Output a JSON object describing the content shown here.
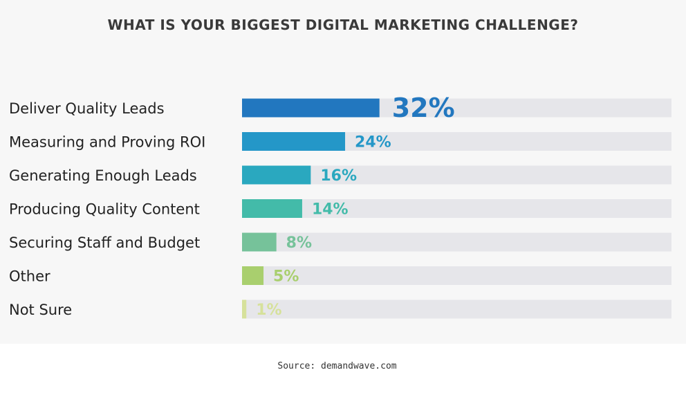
{
  "chart_data": {
    "type": "bar",
    "orientation": "horizontal",
    "title": "WHAT IS YOUR BIGGEST DIGITAL MARKETING CHALLENGE?",
    "categories": [
      "Deliver Quality Leads",
      "Measuring and Proving ROI",
      "Generating Enough Leads",
      "Producing Quality Content",
      "Securing Staff and Budget",
      "Other",
      "Not Sure"
    ],
    "values": [
      32,
      24,
      16,
      14,
      8,
      5,
      1
    ],
    "value_labels": [
      "32%",
      "24%",
      "16%",
      "14%",
      "8%",
      "5%",
      "1%"
    ],
    "colors": [
      "#2277bf",
      "#2497c8",
      "#2aa8bf",
      "#43bba9",
      "#76c29a",
      "#a9cf6e",
      "#d6e19b"
    ],
    "track_color": "#e6e6ea",
    "xlim": [
      0,
      100
    ],
    "xlabel": "",
    "ylabel": "",
    "grid": false
  },
  "source": "Source: demandwave.com"
}
